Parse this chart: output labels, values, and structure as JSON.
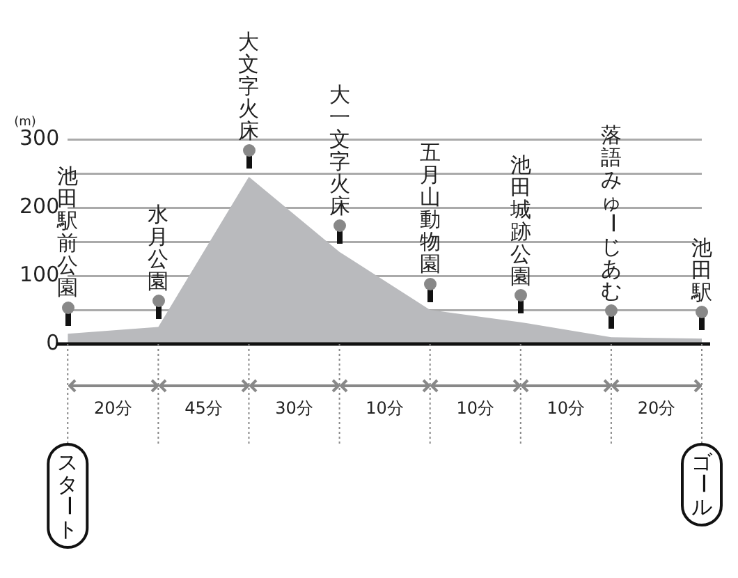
{
  "chart_data": {
    "type": "area",
    "ylabel": "(m)",
    "categories": [
      null,
      null,
      null,
      null,
      null,
      null,
      null,
      null
    ],
    "series": [
      {
        "color": "#b9babd",
        "values": [
          15,
          25,
          245,
          135,
          50,
          32,
          10,
          8
        ]
      }
    ],
    "ylim": [
      0,
      300
    ],
    "yticks": [
      0,
      {
        "value": 50,
        "label": null
      },
      100,
      {
        "value": 150,
        "label": null
      },
      200,
      {
        "value": 250,
        "label": null
      },
      300
    ],
    "grid": "y",
    "tick_labels": "y",
    "marker": "none",
    "annotations": [
      "池田駅前公園",
      "水月公園",
      "大文字火床",
      "大一文字火床",
      "五月山動物園",
      "池田城跡公園",
      "落語みゅーじあむ",
      "池田駅",
      "20分",
      "45分",
      "30分",
      "10分",
      "10分",
      "10分",
      "20分",
      "スタート",
      "ゴール"
    ]
  }
}
